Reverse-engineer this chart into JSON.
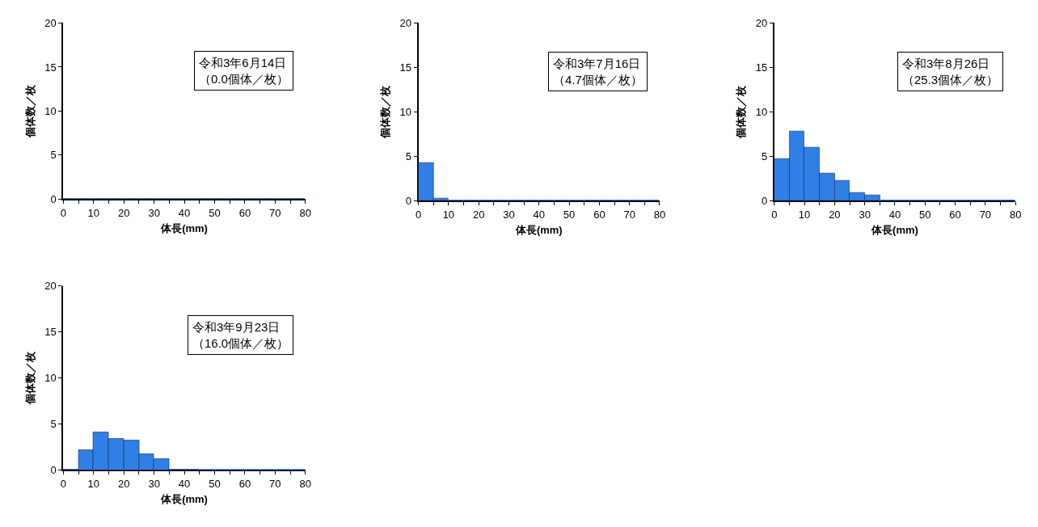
{
  "chart_data": [
    {
      "type": "histogram",
      "bins": [
        0,
        5,
        10,
        15,
        20,
        25,
        30,
        35,
        40,
        45,
        50,
        55,
        60,
        65,
        70,
        75,
        80
      ],
      "values": [
        0,
        0,
        0,
        0,
        0,
        0,
        0,
        0,
        0,
        0,
        0,
        0,
        0,
        0,
        0,
        0
      ],
      "color": "#2f7fe6",
      "xlim": [
        0,
        80
      ],
      "ylim": [
        0,
        20
      ],
      "xticks": [
        0,
        {
          "value": 5,
          "label": null
        },
        10,
        {
          "value": 15,
          "label": null
        },
        20,
        {
          "value": 25,
          "label": null
        },
        30,
        {
          "value": 35,
          "label": null
        },
        40,
        {
          "value": 45,
          "label": null
        },
        50,
        {
          "value": 55,
          "label": null
        },
        60,
        {
          "value": 65,
          "label": null
        },
        70,
        {
          "value": 75,
          "label": null
        },
        80
      ],
      "yticks": [
        0,
        5,
        10,
        15,
        20
      ],
      "xlabel": "体長(mm)",
      "ylabel": "個体数／枚",
      "annotations": [
        "令和3年6月14日",
        "（0.0個体／枚）"
      ]
    },
    {
      "type": "histogram",
      "bins": [
        0,
        5,
        10,
        15,
        20,
        25,
        30,
        35,
        40,
        45,
        50,
        55,
        60,
        65,
        70,
        75,
        80
      ],
      "values": [
        4.3,
        0.3,
        0,
        0,
        0,
        0,
        0,
        0,
        0,
        0,
        0,
        0,
        0,
        0,
        0,
        0
      ],
      "color": "#2f7fe6",
      "xlim": [
        0,
        80
      ],
      "ylim": [
        0,
        20
      ],
      "xticks": [
        0,
        {
          "value": 5,
          "label": null
        },
        10,
        {
          "value": 15,
          "label": null
        },
        20,
        {
          "value": 25,
          "label": null
        },
        30,
        {
          "value": 35,
          "label": null
        },
        40,
        {
          "value": 45,
          "label": null
        },
        50,
        {
          "value": 55,
          "label": null
        },
        60,
        {
          "value": 65,
          "label": null
        },
        70,
        {
          "value": 75,
          "label": null
        },
        80
      ],
      "yticks": [
        0,
        5,
        10,
        15,
        20
      ],
      "xlabel": "体長(mm)",
      "ylabel": "個体数／枚",
      "annotations": [
        "令和3年7月16日",
        "（4.7個体／枚）"
      ]
    },
    {
      "type": "histogram",
      "bins": [
        0,
        5,
        10,
        15,
        20,
        25,
        30,
        35,
        40,
        45,
        50,
        55,
        60,
        65,
        70,
        75,
        80
      ],
      "values": [
        4.7,
        7.8,
        6.0,
        3.1,
        2.3,
        0.9,
        0.6,
        0,
        0,
        0,
        0,
        0,
        0,
        0,
        0,
        0
      ],
      "color": "#2f7fe6",
      "xlim": [
        0,
        80
      ],
      "ylim": [
        0,
        20
      ],
      "xticks": [
        0,
        {
          "value": 5,
          "label": null
        },
        10,
        {
          "value": 15,
          "label": null
        },
        20,
        {
          "value": 25,
          "label": null
        },
        30,
        {
          "value": 35,
          "label": null
        },
        40,
        {
          "value": 45,
          "label": null
        },
        50,
        {
          "value": 55,
          "label": null
        },
        60,
        {
          "value": 65,
          "label": null
        },
        70,
        {
          "value": 75,
          "label": null
        },
        80
      ],
      "yticks": [
        0,
        5,
        10,
        15,
        20
      ],
      "xlabel": "体長(mm)",
      "ylabel": "個体数／枚",
      "annotations": [
        "令和3年8月26日",
        "（25.3個体／枚）"
      ]
    },
    {
      "type": "histogram",
      "bins": [
        0,
        5,
        10,
        15,
        20,
        25,
        30,
        35,
        40,
        45,
        50,
        55,
        60,
        65,
        70,
        75,
        80
      ],
      "values": [
        0.1,
        2.2,
        4.1,
        3.4,
        3.2,
        1.7,
        1.2,
        0.1,
        0.1,
        0,
        0,
        0,
        0,
        0,
        0,
        0
      ],
      "color": "#2f7fe6",
      "xlim": [
        0,
        80
      ],
      "ylim": [
        0,
        20
      ],
      "xticks": [
        0,
        {
          "value": 5,
          "label": null
        },
        10,
        {
          "value": 15,
          "label": null
        },
        20,
        {
          "value": 25,
          "label": null
        },
        30,
        {
          "value": 35,
          "label": null
        },
        40,
        {
          "value": 45,
          "label": null
        },
        50,
        {
          "value": 55,
          "label": null
        },
        60,
        {
          "value": 65,
          "label": null
        },
        70,
        {
          "value": 75,
          "label": null
        },
        80
      ],
      "yticks": [
        0,
        5,
        10,
        15,
        20
      ],
      "xlabel": "体長(mm)",
      "ylabel": "個体数／枚",
      "annotations": [
        "令和3年9月23日",
        "（16.0個体／枚）"
      ]
    }
  ]
}
